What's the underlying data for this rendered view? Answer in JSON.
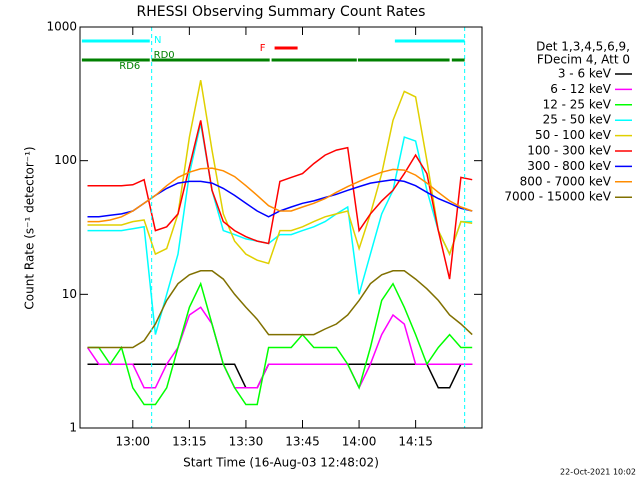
{
  "chart_data": {
    "type": "line",
    "title": "RHESSI Observing Summary Count Rates",
    "xlabel": "Start Time (16-Aug-03 12:48:02)",
    "ylabel": "Count Rate (s⁻¹ detector⁻¹)",
    "timestamp": "22-Oct-2021 10:02",
    "legend_header": [
      "Det 1,3,4,5,6,9,",
      "FDecim 4, Att 0"
    ],
    "legend": "right",
    "log_y": true,
    "xlim": [
      46,
      152.6
    ],
    "xticks": [
      {
        "value": 60,
        "label": "13:00"
      },
      {
        "value": 75,
        "label": "13:15"
      },
      {
        "value": 90,
        "label": "13:30"
      },
      {
        "value": 105,
        "label": "13:45"
      },
      {
        "value": 120,
        "label": "14:00"
      },
      {
        "value": 135,
        "label": "14:15"
      }
    ],
    "ylim": [
      1,
      1000
    ],
    "yticks": [
      1,
      10,
      100,
      1000
    ],
    "x": [
      48,
      51,
      54,
      57,
      60,
      63,
      66,
      69,
      72,
      75,
      78,
      81,
      84,
      87,
      90,
      93,
      96,
      99,
      102,
      105,
      108,
      111,
      114,
      117,
      120,
      123,
      126,
      129,
      132,
      135,
      138,
      141,
      144,
      147,
      150
    ],
    "series": [
      {
        "name": "3 - 6 keV",
        "color": "#000000",
        "values": [
          3,
          3,
          3,
          3,
          3,
          3,
          3,
          3,
          3,
          3,
          3,
          3,
          3,
          3,
          2,
          2,
          3,
          3,
          3,
          3,
          3,
          3,
          3,
          3,
          3,
          3,
          3,
          3,
          3,
          3,
          3,
          2,
          2,
          3,
          3
        ]
      },
      {
        "name": "6 - 12 keV",
        "color": "#ff00ff",
        "values": [
          4,
          3,
          3,
          3,
          3,
          2,
          2,
          3,
          4,
          7,
          8,
          6,
          3,
          2,
          2,
          2,
          3,
          3,
          3,
          3,
          3,
          3,
          3,
          3,
          2,
          3,
          5,
          7,
          6,
          3,
          3,
          3,
          3,
          3,
          3
        ]
      },
      {
        "name": "12 - 25 keV",
        "color": "#00ff00",
        "values": [
          4,
          4,
          3,
          4,
          2,
          1.5,
          1.5,
          2,
          4,
          8,
          12,
          6,
          3,
          2,
          1.5,
          1.5,
          4,
          4,
          4,
          5,
          4,
          4,
          4,
          3,
          2,
          4,
          9,
          12,
          8,
          5,
          3,
          4,
          5,
          4,
          4
        ]
      },
      {
        "name": "25 - 50 keV",
        "color": "#00ffff",
        "values": [
          30,
          30,
          30,
          30,
          31,
          32,
          5,
          10,
          20,
          80,
          190,
          60,
          30,
          28,
          26,
          25,
          24,
          28,
          28,
          30,
          32,
          35,
          40,
          45,
          10,
          20,
          40,
          60,
          150,
          140,
          60,
          30,
          20,
          35,
          35
        ]
      },
      {
        "name": "50 - 100 keV",
        "color": "#e0d000",
        "values": [
          33,
          33,
          33,
          33,
          35,
          36,
          20,
          22,
          40,
          150,
          400,
          120,
          40,
          25,
          20,
          18,
          17,
          30,
          30,
          32,
          35,
          38,
          40,
          42,
          22,
          40,
          80,
          200,
          330,
          300,
          100,
          30,
          20,
          35,
          34
        ]
      },
      {
        "name": "100 - 300 keV",
        "color": "#ff0000",
        "values": [
          65,
          65,
          65,
          65,
          66,
          72,
          30,
          32,
          40,
          90,
          200,
          60,
          35,
          30,
          27,
          25,
          24,
          70,
          75,
          80,
          95,
          110,
          120,
          125,
          30,
          40,
          50,
          60,
          80,
          110,
          80,
          30,
          13,
          75,
          72
        ]
      },
      {
        "name": "300 - 800 keV",
        "color": "#0000ff",
        "values": [
          38,
          38,
          39,
          40,
          42,
          48,
          55,
          62,
          68,
          70,
          70,
          68,
          62,
          55,
          48,
          42,
          38,
          42,
          45,
          48,
          50,
          53,
          56,
          60,
          64,
          68,
          70,
          72,
          70,
          65,
          58,
          52,
          48,
          44,
          42
        ]
      },
      {
        "name": "800 - 7000 keV",
        "color": "#ff8c00",
        "values": [
          35,
          35,
          36,
          38,
          42,
          48,
          55,
          65,
          75,
          82,
          87,
          88,
          84,
          76,
          65,
          55,
          46,
          42,
          42,
          45,
          48,
          52,
          58,
          64,
          70,
          76,
          82,
          86,
          85,
          78,
          68,
          58,
          50,
          45,
          42
        ]
      },
      {
        "name": "7000 - 15000 keV",
        "color": "#807000",
        "values": [
          4,
          4,
          4,
          4,
          4,
          4.5,
          6,
          9,
          12,
          14,
          15,
          15,
          13,
          10,
          8,
          6.5,
          5,
          5,
          5,
          5,
          5,
          5.5,
          6,
          7,
          9,
          12,
          14,
          15,
          15,
          13,
          11,
          9,
          7,
          6,
          5
        ]
      }
    ],
    "flags": [
      {
        "label": "N",
        "color": "#00ffff",
        "segments": [
          [
            46.5,
            64.5
          ],
          [
            129.5,
            148
          ]
        ]
      },
      {
        "label": "F",
        "color": "#ff0000",
        "segments": [
          [
            97.6,
            103.7
          ]
        ]
      },
      {
        "label": "RD6",
        "color": "#008000",
        "segments": [
          [
            46.5,
            64.5
          ]
        ]
      },
      {
        "label": "RD0",
        "color": "#008000",
        "segments": [
          [
            65,
            96.3
          ],
          [
            96.8,
            119.4
          ],
          [
            119.7,
            144
          ],
          [
            144.6,
            148
          ]
        ]
      }
    ],
    "vlines": [
      65,
      148
    ]
  }
}
